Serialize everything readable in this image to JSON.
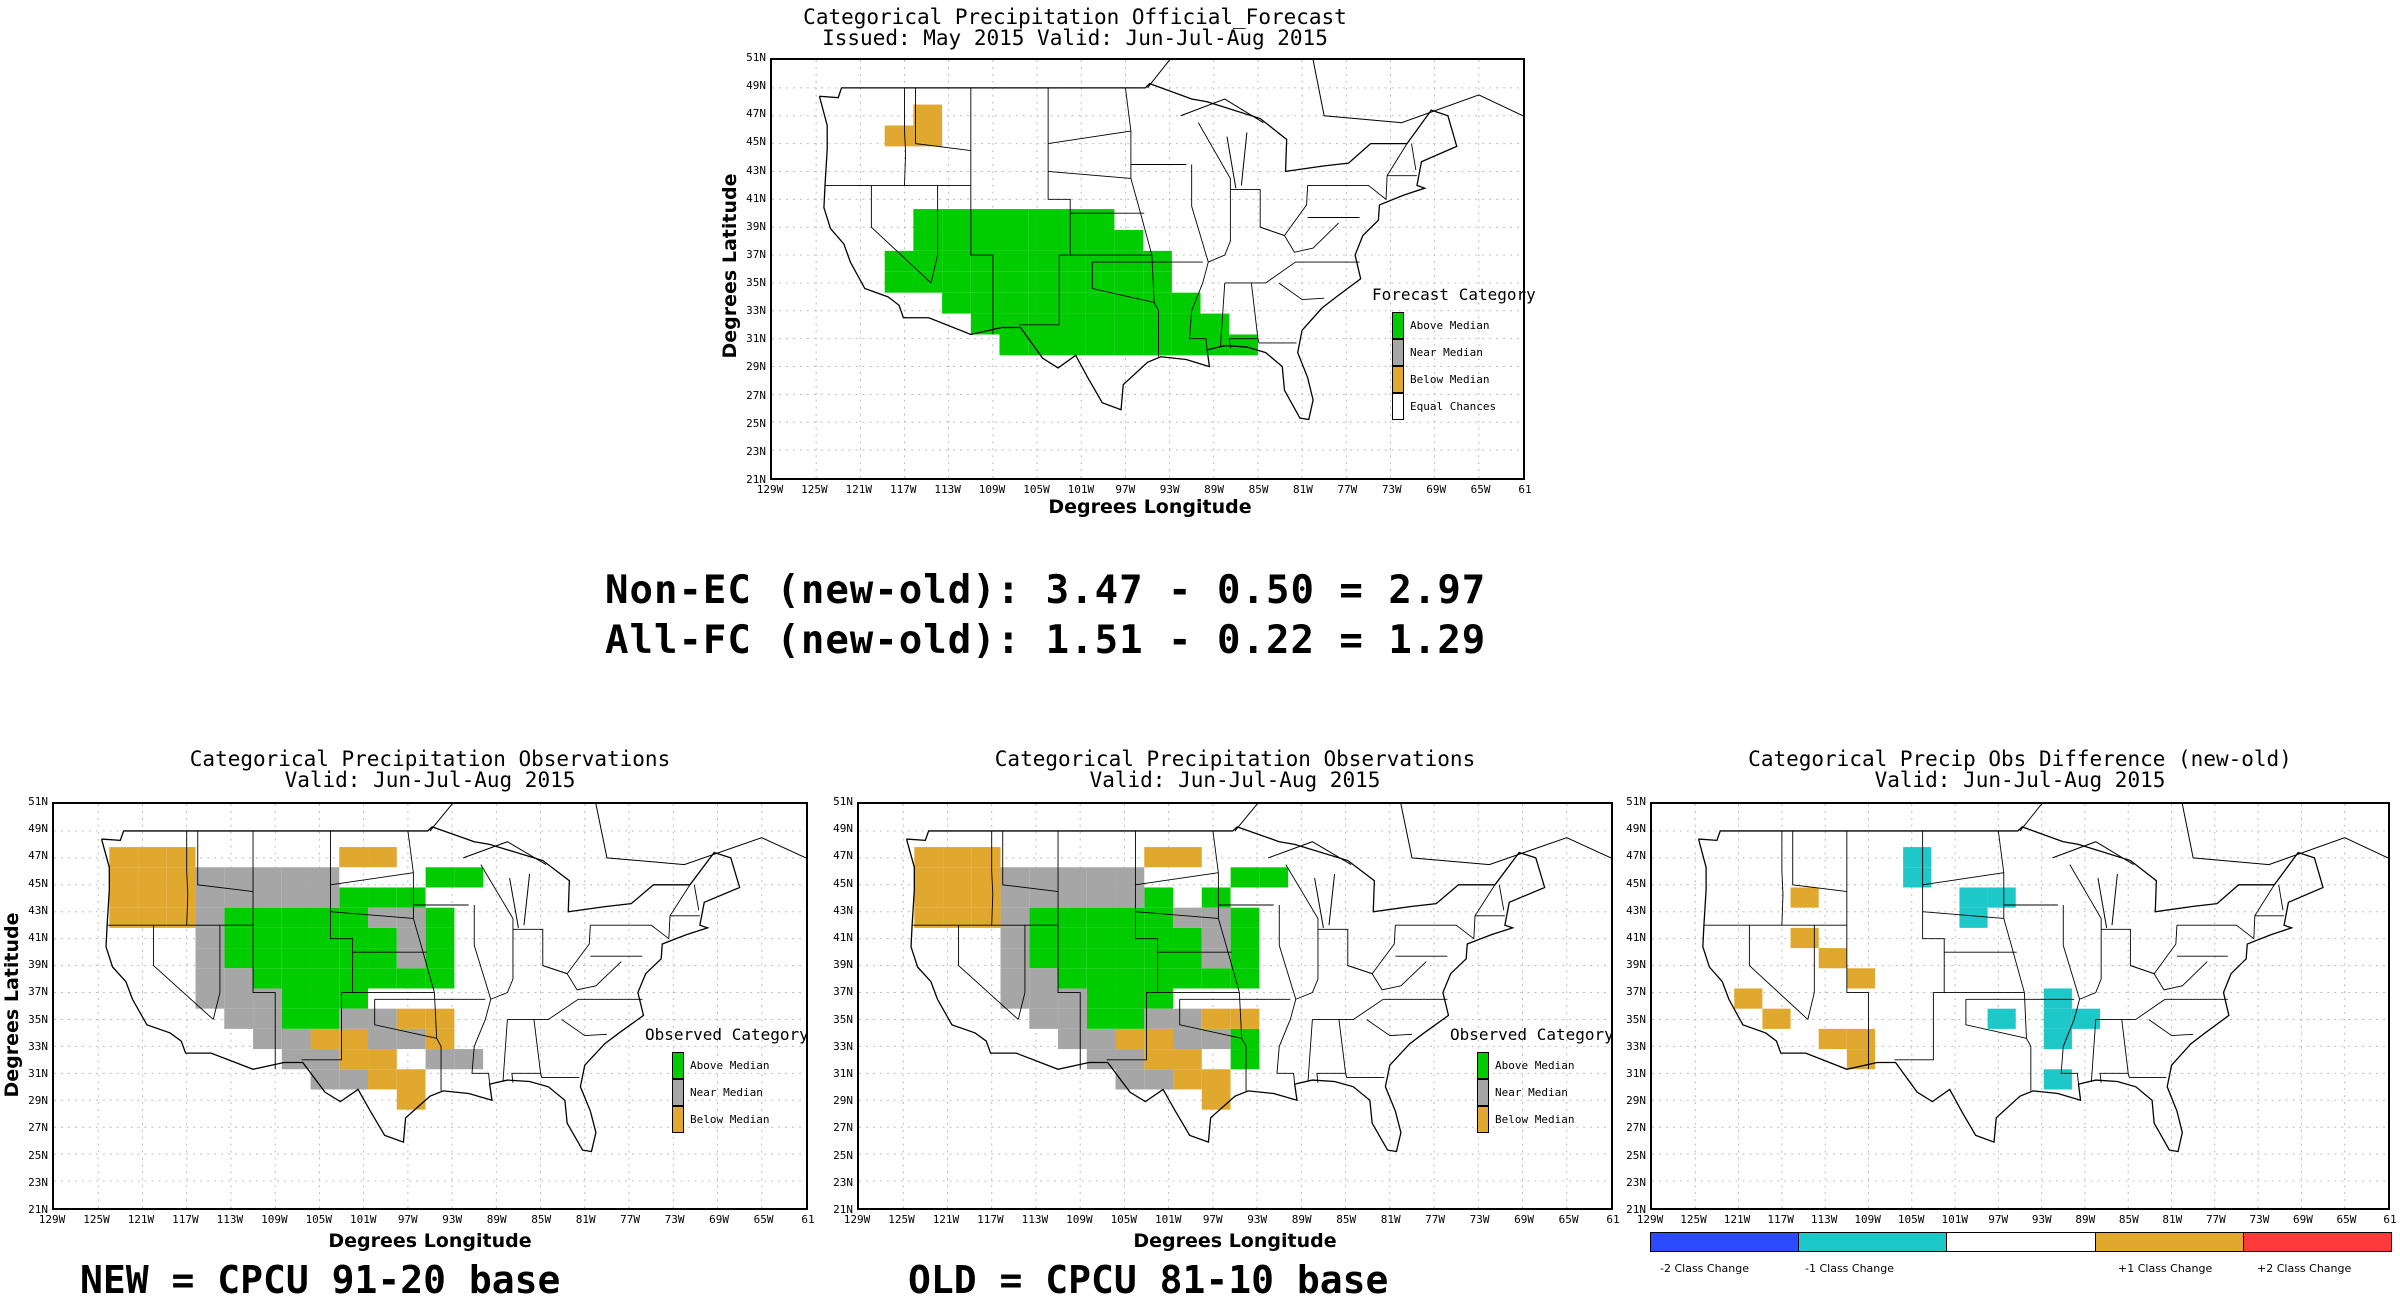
{
  "top_panel": {
    "title_line1": "Categorical Precipitation Official_Forecast",
    "title_line2": "Issued: May 2015 Valid: Jun-Jul-Aug 2015",
    "xlabel": "Degrees Longitude",
    "ylabel": "Degrees Latitude",
    "legend_title": "Forecast Category",
    "legend": [
      "Above Median",
      "Near Median",
      "Below Median",
      "Equal Chances"
    ]
  },
  "new_panel": {
    "title_line1": "Categorical Precipitation Observations",
    "title_line2": "Valid: Jun-Jul-Aug 2015",
    "xlabel": "Degrees Longitude",
    "ylabel": "Degrees Latitude",
    "legend_title": "Observed Category",
    "legend": [
      "Above Median",
      "Near Median",
      "Below Median"
    ]
  },
  "old_panel": {
    "title_line1": "Categorical Precipitation Observations",
    "title_line2": "Valid: Jun-Jul-Aug 2015",
    "xlabel": "Degrees Longitude",
    "legend_title": "Observed Category",
    "legend": [
      "Above Median",
      "Near Median",
      "Below Median"
    ]
  },
  "diff_panel": {
    "title_line1": "Categorical Precip Obs Difference (new-old)",
    "title_line2": "Valid: Jun-Jul-Aug 2015",
    "colorbar_labels": [
      "-2 Class Change",
      "-1 Class Change",
      "+1 Class Change",
      "+2 Class Change"
    ]
  },
  "axes": {
    "lat_ticks": [
      "51N",
      "49N",
      "47N",
      "45N",
      "43N",
      "41N",
      "39N",
      "37N",
      "35N",
      "33N",
      "31N",
      "29N",
      "27N",
      "25N",
      "23N",
      "21N"
    ],
    "lon_ticks": [
      "129W",
      "125W",
      "121W",
      "117W",
      "113W",
      "109W",
      "105W",
      "101W",
      "97W",
      "93W",
      "89W",
      "85W",
      "81W",
      "77W",
      "73W",
      "69W",
      "65W",
      "61"
    ]
  },
  "stats": {
    "line1": "Non-EC (new-old): 3.47 - 0.50 = 2.97",
    "line2": "All-FC (new-old): 1.51 - 0.22 = 1.29"
  },
  "bases": {
    "new": "NEW = CPCU 91-20 base",
    "old": "OLD = CPCU 81-10 base"
  },
  "colors": {
    "above": "#00cc00",
    "near": "#a6a6a6",
    "below": "#e0a82e",
    "minus2": "#2a4bff",
    "minus1": "#1ec8c8",
    "plus1": "#e0a82e",
    "plus2": "#ff3a3a"
  },
  "map_cells": {
    "forecast": {
      "above": [
        [
          5,
          3
        ],
        [
          5,
          4
        ],
        [
          5,
          5
        ],
        [
          5,
          6
        ],
        [
          5,
          7
        ],
        [
          5,
          8
        ],
        [
          5,
          9
        ],
        [
          6,
          3
        ],
        [
          6,
          4
        ],
        [
          6,
          5
        ],
        [
          6,
          6
        ],
        [
          6,
          7
        ],
        [
          6,
          8
        ],
        [
          6,
          9
        ],
        [
          6,
          10
        ],
        [
          7,
          2
        ],
        [
          7,
          3
        ],
        [
          7,
          4
        ],
        [
          7,
          5
        ],
        [
          7,
          6
        ],
        [
          7,
          7
        ],
        [
          7,
          8
        ],
        [
          7,
          9
        ],
        [
          7,
          10
        ],
        [
          7,
          11
        ],
        [
          8,
          2
        ],
        [
          8,
          3
        ],
        [
          8,
          4
        ],
        [
          8,
          5
        ],
        [
          8,
          6
        ],
        [
          8,
          7
        ],
        [
          8,
          8
        ],
        [
          8,
          9
        ],
        [
          8,
          10
        ],
        [
          8,
          11
        ],
        [
          9,
          4
        ],
        [
          9,
          5
        ],
        [
          9,
          6
        ],
        [
          9,
          7
        ],
        [
          9,
          8
        ],
        [
          9,
          9
        ],
        [
          9,
          10
        ],
        [
          9,
          11
        ],
        [
          9,
          12
        ],
        [
          10,
          5
        ],
        [
          10,
          6
        ],
        [
          10,
          7
        ],
        [
          10,
          8
        ],
        [
          10,
          9
        ],
        [
          10,
          10
        ],
        [
          10,
          11
        ],
        [
          10,
          12
        ],
        [
          10,
          13
        ],
        [
          11,
          6
        ],
        [
          11,
          7
        ],
        [
          11,
          8
        ],
        [
          11,
          9
        ],
        [
          11,
          10
        ],
        [
          11,
          11
        ],
        [
          11,
          12
        ],
        [
          11,
          13
        ],
        [
          11,
          14
        ]
      ],
      "below": [
        [
          1,
          2
        ],
        [
          1,
          3
        ],
        [
          0,
          3
        ]
      ]
    },
    "new": {
      "above": [
        [
          3,
          4
        ],
        [
          3,
          5
        ],
        [
          3,
          6
        ],
        [
          3,
          7
        ],
        [
          3,
          8
        ],
        [
          4,
          4
        ],
        [
          4,
          5
        ],
        [
          4,
          6
        ],
        [
          4,
          7
        ],
        [
          4,
          8
        ],
        [
          4,
          9
        ],
        [
          5,
          4
        ],
        [
          5,
          5
        ],
        [
          5,
          6
        ],
        [
          5,
          7
        ],
        [
          5,
          8
        ],
        [
          5,
          9
        ],
        [
          6,
          5
        ],
        [
          6,
          6
        ],
        [
          6,
          7
        ],
        [
          6,
          8
        ],
        [
          6,
          9
        ],
        [
          6,
          10
        ],
        [
          7,
          6
        ],
        [
          7,
          7
        ],
        [
          7,
          8
        ],
        [
          8,
          6
        ],
        [
          8,
          7
        ],
        [
          2,
          10
        ],
        [
          3,
          11
        ],
        [
          4,
          11
        ],
        [
          5,
          11
        ],
        [
          6,
          11
        ],
        [
          2,
          8
        ],
        [
          2,
          9
        ],
        [
          1,
          11
        ],
        [
          1,
          12
        ]
      ],
      "near": [
        [
          1,
          3
        ],
        [
          1,
          4
        ],
        [
          1,
          5
        ],
        [
          1,
          6
        ],
        [
          1,
          7
        ],
        [
          2,
          3
        ],
        [
          2,
          4
        ],
        [
          2,
          5
        ],
        [
          2,
          6
        ],
        [
          2,
          7
        ],
        [
          3,
          3
        ],
        [
          3,
          9
        ],
        [
          3,
          10
        ],
        [
          4,
          3
        ],
        [
          4,
          10
        ],
        [
          5,
          3
        ],
        [
          5,
          10
        ],
        [
          6,
          3
        ],
        [
          6,
          4
        ],
        [
          7,
          3
        ],
        [
          7,
          4
        ],
        [
          7,
          5
        ],
        [
          8,
          4
        ],
        [
          8,
          5
        ],
        [
          9,
          5
        ],
        [
          9,
          6
        ],
        [
          10,
          6
        ],
        [
          10,
          7
        ],
        [
          11,
          7
        ],
        [
          11,
          8
        ],
        [
          8,
          8
        ],
        [
          8,
          9
        ],
        [
          9,
          9
        ],
        [
          9,
          10
        ],
        [
          10,
          11
        ],
        [
          10,
          12
        ]
      ],
      "below": [
        [
          0,
          0
        ],
        [
          0,
          1
        ],
        [
          0,
          2
        ],
        [
          1,
          0
        ],
        [
          1,
          1
        ],
        [
          1,
          2
        ],
        [
          2,
          0
        ],
        [
          2,
          1
        ],
        [
          2,
          2
        ],
        [
          3,
          0
        ],
        [
          3,
          1
        ],
        [
          3,
          2
        ],
        [
          0,
          8
        ],
        [
          0,
          9
        ],
        [
          9,
          7
        ],
        [
          9,
          8
        ],
        [
          10,
          8
        ],
        [
          10,
          9
        ],
        [
          11,
          9
        ],
        [
          11,
          10
        ],
        [
          8,
          10
        ],
        [
          8,
          11
        ],
        [
          9,
          11
        ],
        [
          12,
          10
        ]
      ]
    },
    "old": {
      "above": [
        [
          3,
          4
        ],
        [
          3,
          5
        ],
        [
          3,
          6
        ],
        [
          3,
          7
        ],
        [
          3,
          8
        ],
        [
          4,
          4
        ],
        [
          4,
          5
        ],
        [
          4,
          6
        ],
        [
          4,
          7
        ],
        [
          4,
          8
        ],
        [
          4,
          9
        ],
        [
          5,
          4
        ],
        [
          5,
          5
        ],
        [
          5,
          6
        ],
        [
          5,
          7
        ],
        [
          5,
          8
        ],
        [
          5,
          9
        ],
        [
          6,
          5
        ],
        [
          6,
          6
        ],
        [
          6,
          7
        ],
        [
          6,
          8
        ],
        [
          6,
          9
        ],
        [
          6,
          10
        ],
        [
          7,
          6
        ],
        [
          7,
          7
        ],
        [
          7,
          8
        ],
        [
          8,
          6
        ],
        [
          8,
          7
        ],
        [
          2,
          10
        ],
        [
          3,
          11
        ],
        [
          4,
          11
        ],
        [
          5,
          11
        ],
        [
          6,
          11
        ],
        [
          2,
          8
        ],
        [
          1,
          11
        ],
        [
          1,
          12
        ],
        [
          9,
          11
        ],
        [
          10,
          11
        ]
      ],
      "near": [
        [
          1,
          3
        ],
        [
          1,
          4
        ],
        [
          1,
          5
        ],
        [
          1,
          6
        ],
        [
          1,
          7
        ],
        [
          2,
          3
        ],
        [
          2,
          4
        ],
        [
          2,
          5
        ],
        [
          2,
          6
        ],
        [
          2,
          7
        ],
        [
          3,
          3
        ],
        [
          3,
          9
        ],
        [
          3,
          10
        ],
        [
          4,
          3
        ],
        [
          4,
          10
        ],
        [
          5,
          3
        ],
        [
          5,
          10
        ],
        [
          6,
          3
        ],
        [
          6,
          4
        ],
        [
          7,
          3
        ],
        [
          7,
          4
        ],
        [
          7,
          5
        ],
        [
          8,
          4
        ],
        [
          8,
          5
        ],
        [
          9,
          5
        ],
        [
          9,
          6
        ],
        [
          10,
          6
        ],
        [
          10,
          7
        ],
        [
          11,
          7
        ],
        [
          11,
          8
        ],
        [
          8,
          8
        ],
        [
          8,
          9
        ],
        [
          9,
          9
        ],
        [
          9,
          10
        ]
      ],
      "below": [
        [
          0,
          0
        ],
        [
          0,
          1
        ],
        [
          0,
          2
        ],
        [
          1,
          0
        ],
        [
          1,
          1
        ],
        [
          1,
          2
        ],
        [
          2,
          0
        ],
        [
          2,
          1
        ],
        [
          2,
          2
        ],
        [
          3,
          0
        ],
        [
          3,
          1
        ],
        [
          3,
          2
        ],
        [
          0,
          8
        ],
        [
          0,
          9
        ],
        [
          9,
          7
        ],
        [
          9,
          8
        ],
        [
          10,
          8
        ],
        [
          10,
          9
        ],
        [
          11,
          9
        ],
        [
          11,
          10
        ],
        [
          8,
          10
        ],
        [
          8,
          11
        ],
        [
          12,
          10
        ]
      ]
    },
    "diff": {
      "minus1": [
        [
          0,
          7
        ],
        [
          1,
          7
        ],
        [
          2,
          9
        ],
        [
          2,
          10
        ],
        [
          3,
          9
        ],
        [
          7,
          12
        ],
        [
          8,
          10
        ],
        [
          8,
          12
        ],
        [
          8,
          13
        ],
        [
          9,
          12
        ],
        [
          11,
          12
        ]
      ],
      "plus1": [
        [
          2,
          3
        ],
        [
          4,
          3
        ],
        [
          5,
          4
        ],
        [
          6,
          5
        ],
        [
          7,
          1
        ],
        [
          8,
          2
        ],
        [
          9,
          4
        ],
        [
          9,
          5
        ],
        [
          10,
          5
        ]
      ]
    }
  }
}
